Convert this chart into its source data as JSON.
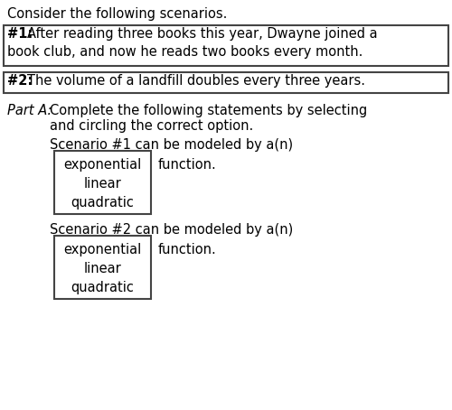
{
  "bg_color": "#ffffff",
  "intro_text": "Consider the following scenarios.",
  "s1_label": "#1:",
  "s1_line1": "After reading three books this year, Dwayne joined a",
  "s1_line2": "book club, and now he reads two books every month.",
  "s2_label": "#2:",
  "s2_line1": "The volume of a landfill doubles every three years.",
  "parta_label": "Part A:",
  "parta_line1": "Complete the following statements by selecting",
  "parta_line2": "and circling the correct option.",
  "s1_prompt": "Scenario #1 can be modeled by a(n)",
  "s2_prompt": "Scenario #2 can be modeled by a(n)",
  "box_options": [
    "exponential",
    "linear",
    "quadratic"
  ],
  "function_text": "function.",
  "fontsize": 10.5,
  "fig_w": 5.0,
  "fig_h": 4.54,
  "dpi": 100
}
